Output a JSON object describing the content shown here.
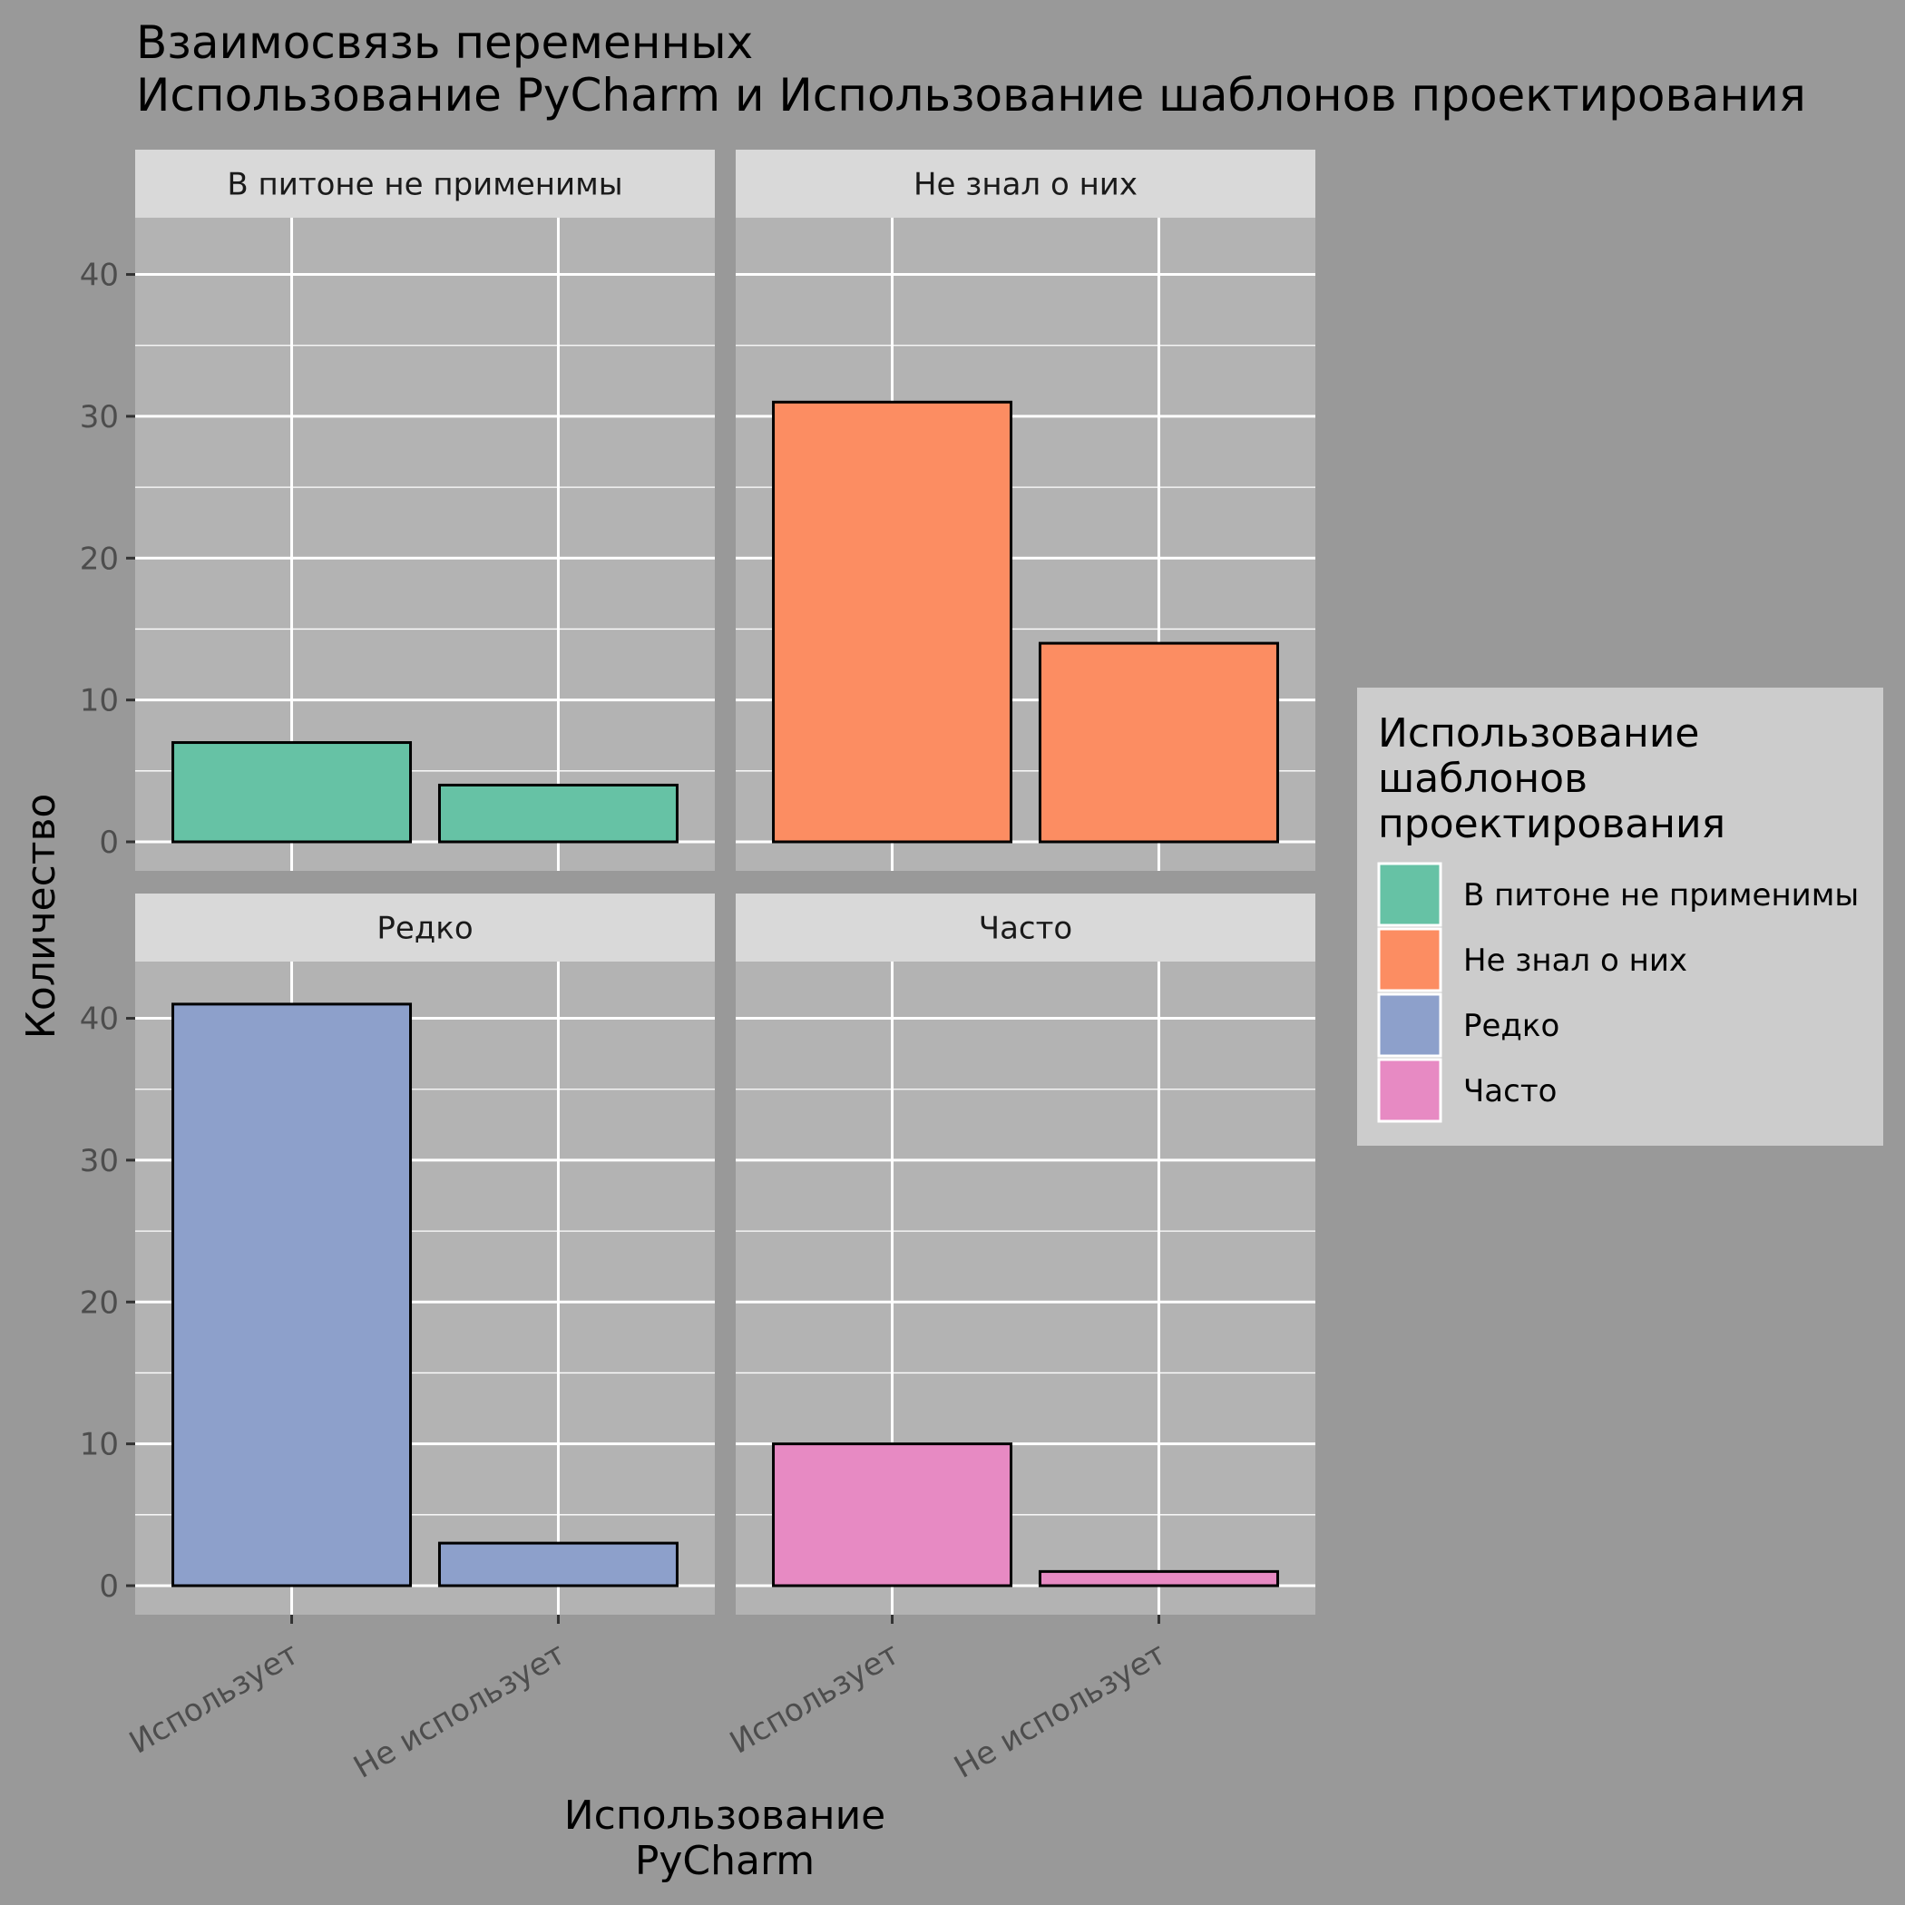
{
  "chart_data": {
    "type": "bar",
    "title_lines": [
      "Взаимосвязь переменных",
      " Использование PyCharm и Использование шаблонов проектирования"
    ],
    "xlabel_lines": [
      "Использование",
      "PyCharm"
    ],
    "ylabel": "Количество",
    "categories": [
      "Использует",
      "Не использует"
    ],
    "ylim": [
      0,
      44
    ],
    "yticks": [
      0,
      10,
      20,
      30,
      40
    ],
    "legend": {
      "title_lines": [
        "Использование",
        "шаблонов",
        "проектирования"
      ],
      "position": "right"
    },
    "facets": [
      {
        "name": "В питоне не применимы",
        "color": "#66C2A5",
        "values": [
          7,
          4
        ]
      },
      {
        "name": "Не знал о них",
        "color": "#FC8D62",
        "values": [
          31,
          14
        ]
      },
      {
        "name": "Редко",
        "color": "#8DA0CB",
        "values": [
          41,
          3
        ]
      },
      {
        "name": "Часто",
        "color": "#E78AC3",
        "values": [
          10,
          1
        ]
      }
    ]
  }
}
